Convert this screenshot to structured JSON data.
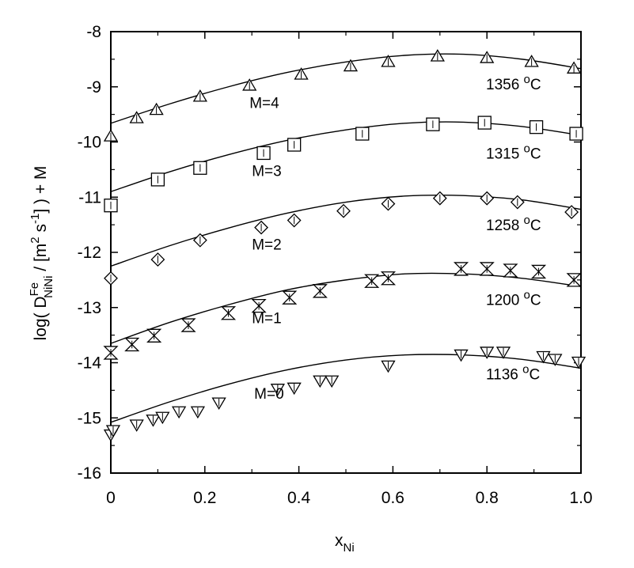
{
  "chart_data": {
    "type": "scatter",
    "x_axis": {
      "label_main": "x",
      "label_sub": "Ni",
      "range": [
        0,
        1.0
      ],
      "ticks": [
        0,
        0.2,
        0.4,
        0.6,
        0.8,
        1.0
      ],
      "tick_labels": [
        "0",
        "0.2",
        "0.4",
        "0.6",
        "0.8",
        "1.0"
      ]
    },
    "y_axis": {
      "label_parts": {
        "prefix": "log( D",
        "superscript": "Fe",
        "subscript": "NiNi",
        "middle": " / [m",
        "sup2": "2",
        "mid2": " s",
        "sup3": "-1",
        "suffix": "] ) + M"
      },
      "range": [
        -16,
        -8
      ],
      "ticks": [
        -16,
        -15,
        -14,
        -13,
        -12,
        -11,
        -10,
        -9,
        -8
      ],
      "tick_labels": [
        "-16",
        "-15",
        "-14",
        "-13",
        "-12",
        "-11",
        "-10",
        "-9",
        "-8"
      ]
    },
    "grid": false,
    "series": [
      {
        "temperature_label": "1356 °C",
        "offset_label": "M=4",
        "marker": "triangle-up",
        "points": [
          [
            0.0,
            -9.9
          ],
          [
            0.055,
            -9.57
          ],
          [
            0.097,
            -9.42
          ],
          [
            0.19,
            -9.18
          ],
          [
            0.295,
            -8.98
          ],
          [
            0.405,
            -8.78
          ],
          [
            0.51,
            -8.63
          ],
          [
            0.59,
            -8.55
          ],
          [
            0.695,
            -8.45
          ],
          [
            0.8,
            -8.48
          ],
          [
            0.895,
            -8.55
          ],
          [
            0.985,
            -8.67
          ]
        ],
        "fit": [
          -9.66,
          -9.31,
          -9.0,
          -8.74,
          -8.55,
          -8.43,
          -8.41,
          -8.5,
          -8.67
        ]
      },
      {
        "temperature_label": "1315 °C",
        "offset_label": "M=3",
        "marker": "square",
        "points": [
          [
            0.0,
            -11.15
          ],
          [
            0.1,
            -10.68
          ],
          [
            0.19,
            -10.47
          ],
          [
            0.325,
            -10.2
          ],
          [
            0.39,
            -10.05
          ],
          [
            0.535,
            -9.85
          ],
          [
            0.685,
            -9.68
          ],
          [
            0.795,
            -9.65
          ],
          [
            0.905,
            -9.73
          ],
          [
            0.99,
            -9.85
          ]
        ],
        "fit": [
          -10.9,
          -10.54,
          -10.23,
          -9.97,
          -9.78,
          -9.66,
          -9.64,
          -9.72,
          -9.88
        ]
      },
      {
        "temperature_label": "1258 °C",
        "offset_label": "M=2",
        "marker": "diamond",
        "points": [
          [
            0.0,
            -12.47
          ],
          [
            0.1,
            -12.13
          ],
          [
            0.19,
            -11.78
          ],
          [
            0.32,
            -11.55
          ],
          [
            0.39,
            -11.42
          ],
          [
            0.495,
            -11.25
          ],
          [
            0.59,
            -11.12
          ],
          [
            0.7,
            -11.02
          ],
          [
            0.8,
            -11.02
          ],
          [
            0.865,
            -11.09
          ],
          [
            0.98,
            -11.27
          ]
        ],
        "fit": [
          -12.25,
          -11.88,
          -11.56,
          -11.29,
          -11.09,
          -10.98,
          -10.97,
          -11.05,
          -11.22
        ]
      },
      {
        "temperature_label": "1200 °C",
        "offset_label": "M=1",
        "marker": "hourglass",
        "points": [
          [
            0.0,
            -13.82
          ],
          [
            0.045,
            -13.67
          ],
          [
            0.092,
            -13.51
          ],
          [
            0.165,
            -13.32
          ],
          [
            0.25,
            -13.1
          ],
          [
            0.315,
            -12.97
          ],
          [
            0.38,
            -12.82
          ],
          [
            0.445,
            -12.7
          ],
          [
            0.555,
            -12.52
          ],
          [
            0.59,
            -12.47
          ],
          [
            0.745,
            -12.3
          ],
          [
            0.8,
            -12.3
          ],
          [
            0.85,
            -12.33
          ],
          [
            0.91,
            -12.35
          ],
          [
            0.985,
            -12.5
          ]
        ],
        "fit": [
          -13.65,
          -13.27,
          -12.95,
          -12.68,
          -12.5,
          -12.39,
          -12.39,
          -12.47,
          -12.62
        ]
      },
      {
        "temperature_label": "1136 °C",
        "offset_label": "M=0",
        "marker": "triangle-down",
        "points": [
          [
            0.0,
            -15.3
          ],
          [
            0.005,
            -15.22
          ],
          [
            0.055,
            -15.12
          ],
          [
            0.09,
            -15.03
          ],
          [
            0.11,
            -14.98
          ],
          [
            0.145,
            -14.88
          ],
          [
            0.185,
            -14.88
          ],
          [
            0.23,
            -14.72
          ],
          [
            0.355,
            -14.47
          ],
          [
            0.39,
            -14.45
          ],
          [
            0.445,
            -14.32
          ],
          [
            0.47,
            -14.32
          ],
          [
            0.59,
            -14.05
          ],
          [
            0.745,
            -13.85
          ],
          [
            0.8,
            -13.8
          ],
          [
            0.835,
            -13.8
          ],
          [
            0.92,
            -13.88
          ],
          [
            0.945,
            -13.93
          ],
          [
            0.995,
            -13.98
          ]
        ],
        "fit": [
          -15.08,
          -14.71,
          -14.39,
          -14.13,
          -13.95,
          -13.86,
          -13.86,
          -13.94,
          -14.1
        ]
      }
    ],
    "fit_x": [
      0,
      0.125,
      0.25,
      0.375,
      0.5,
      0.625,
      0.75,
      0.875,
      1.0
    ]
  }
}
